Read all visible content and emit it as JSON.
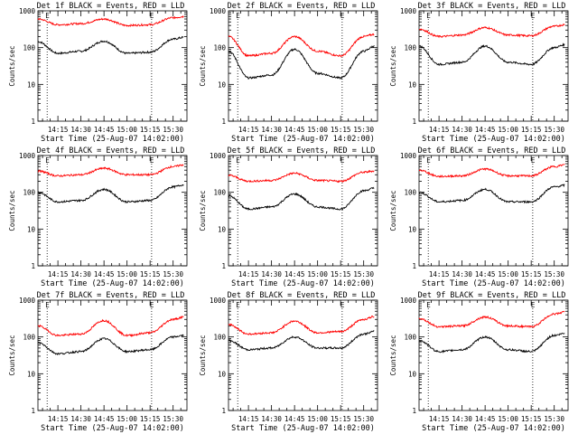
{
  "colors": {
    "events": "#000000",
    "lld": "#ff0000",
    "background": "#ffffff"
  },
  "chart_data": [
    {
      "type": "line",
      "title": "Det 1f BLACK = Events, RED = LLD",
      "xlabel": "Start Time (25-Aug-07 14:02:00)",
      "ylabel": "Counts/sec",
      "xlim": [
        "14:02",
        "15:39"
      ],
      "ylim": [
        1,
        1000
      ],
      "yscale": "log",
      "xticks": [
        "14:15",
        "14:30",
        "14:45",
        "15:00",
        "15:15",
        "15:30"
      ],
      "yticks": [
        "1",
        "10",
        "100",
        "1000"
      ],
      "markers": [
        {
          "label": "E",
          "x": "14:08"
        },
        {
          "label": "E",
          "x": "15:16"
        }
      ],
      "x": [
        "14:02",
        "14:15",
        "14:30",
        "14:45",
        "15:00",
        "15:15",
        "15:30",
        "15:37"
      ],
      "series": [
        {
          "name": "Events",
          "color": "#000000",
          "values": [
            145,
            70,
            80,
            150,
            70,
            75,
            170,
            190
          ]
        },
        {
          "name": "LLD",
          "color": "#ff0000",
          "values": [
            600,
            420,
            450,
            600,
            400,
            420,
            650,
            700
          ]
        }
      ]
    },
    {
      "type": "line",
      "title": "Det 2f BLACK = Events, RED = LLD",
      "xlabel": "Start Time (25-Aug-07 14:02:00)",
      "ylabel": "Counts/sec",
      "xlim": [
        "14:02",
        "15:39"
      ],
      "ylim": [
        1,
        1000
      ],
      "yscale": "log",
      "xticks": [
        "14:15",
        "14:30",
        "14:45",
        "15:00",
        "15:15",
        "15:30"
      ],
      "yticks": [
        "1",
        "10",
        "100",
        "1000"
      ],
      "markers": [
        {
          "label": "E",
          "x": "14:08"
        },
        {
          "label": "E",
          "x": "15:16"
        }
      ],
      "x": [
        "14:02",
        "14:15",
        "14:30",
        "14:45",
        "15:00",
        "15:15",
        "15:30",
        "15:37"
      ],
      "series": [
        {
          "name": "Events",
          "color": "#000000",
          "values": [
            80,
            15,
            18,
            90,
            20,
            15,
            80,
            110
          ]
        },
        {
          "name": "LLD",
          "color": "#ff0000",
          "values": [
            200,
            60,
            70,
            200,
            80,
            60,
            200,
            230
          ]
        }
      ]
    },
    {
      "type": "line",
      "title": "Det 3f BLACK = Events, RED = LLD",
      "xlabel": "Start Time (25-Aug-07 14:02:00)",
      "ylabel": "Counts/sec",
      "xlim": [
        "14:02",
        "15:39"
      ],
      "ylim": [
        1,
        1000
      ],
      "yscale": "log",
      "xticks": [
        "14:15",
        "14:30",
        "14:45",
        "15:00",
        "15:15",
        "15:30"
      ],
      "yticks": [
        "1",
        "10",
        "100",
        "1000"
      ],
      "markers": [
        {
          "label": "E",
          "x": "14:08"
        },
        {
          "label": "E",
          "x": "15:16"
        }
      ],
      "x": [
        "14:02",
        "14:15",
        "14:30",
        "14:45",
        "15:00",
        "15:15",
        "15:30",
        "15:37"
      ],
      "series": [
        {
          "name": "Events",
          "color": "#000000",
          "values": [
            110,
            35,
            40,
            110,
            40,
            35,
            100,
            120
          ]
        },
        {
          "name": "LLD",
          "color": "#ff0000",
          "values": [
            320,
            200,
            220,
            350,
            220,
            210,
            380,
            420
          ]
        }
      ]
    },
    {
      "type": "line",
      "title": "Det 4f BLACK = Events, RED = LLD",
      "xlabel": "Start Time (25-Aug-07 14:02:00)",
      "ylabel": "Counts/sec",
      "xlim": [
        "14:02",
        "15:39"
      ],
      "ylim": [
        1,
        1000
      ],
      "yscale": "log",
      "xticks": [
        "14:15",
        "14:30",
        "14:45",
        "15:00",
        "15:15",
        "15:30"
      ],
      "yticks": [
        "1",
        "10",
        "100",
        "1000"
      ],
      "markers": [
        {
          "label": "E",
          "x": "14:08"
        },
        {
          "label": "E",
          "x": "15:16"
        }
      ],
      "x": [
        "14:02",
        "14:15",
        "14:30",
        "14:45",
        "15:00",
        "15:15",
        "15:30",
        "15:37"
      ],
      "series": [
        {
          "name": "Events",
          "color": "#000000",
          "values": [
            100,
            55,
            60,
            120,
            55,
            60,
            140,
            160
          ]
        },
        {
          "name": "LLD",
          "color": "#ff0000",
          "values": [
            380,
            280,
            300,
            450,
            300,
            300,
            500,
            560
          ]
        }
      ]
    },
    {
      "type": "line",
      "title": "Det 5f BLACK = Events, RED = LLD",
      "xlabel": "Start Time (25-Aug-07 14:02:00)",
      "ylabel": "Counts/sec",
      "xlim": [
        "14:02",
        "15:39"
      ],
      "ylim": [
        1,
        1000
      ],
      "yscale": "log",
      "xticks": [
        "14:15",
        "14:30",
        "14:45",
        "15:00",
        "15:15",
        "15:30"
      ],
      "yticks": [
        "1",
        "10",
        "100",
        "1000"
      ],
      "markers": [
        {
          "label": "E",
          "x": "14:08"
        },
        {
          "label": "E",
          "x": "15:16"
        }
      ],
      "x": [
        "14:02",
        "14:15",
        "14:30",
        "14:45",
        "15:00",
        "15:15",
        "15:30",
        "15:37"
      ],
      "series": [
        {
          "name": "Events",
          "color": "#000000",
          "values": [
            80,
            35,
            40,
            90,
            40,
            35,
            110,
            130
          ]
        },
        {
          "name": "LLD",
          "color": "#ff0000",
          "values": [
            290,
            200,
            210,
            330,
            210,
            200,
            350,
            380
          ]
        }
      ]
    },
    {
      "type": "line",
      "title": "Det 6f BLACK = Events, RED = LLD",
      "xlabel": "Start Time (25-Aug-07 14:02:00)",
      "ylabel": "Counts/sec",
      "xlim": [
        "14:02",
        "15:39"
      ],
      "ylim": [
        1,
        1000
      ],
      "yscale": "log",
      "xticks": [
        "14:15",
        "14:30",
        "14:45",
        "15:00",
        "15:15",
        "15:30"
      ],
      "yticks": [
        "1",
        "10",
        "100",
        "1000"
      ],
      "markers": [
        {
          "label": "E",
          "x": "14:08"
        },
        {
          "label": "E",
          "x": "15:16"
        }
      ],
      "x": [
        "14:02",
        "14:15",
        "14:30",
        "14:45",
        "15:00",
        "15:15",
        "15:30",
        "15:37"
      ],
      "series": [
        {
          "name": "Events",
          "color": "#000000",
          "values": [
            100,
            55,
            60,
            120,
            55,
            55,
            140,
            155
          ]
        },
        {
          "name": "LLD",
          "color": "#ff0000",
          "values": [
            400,
            270,
            280,
            430,
            280,
            280,
            500,
            560
          ]
        }
      ]
    },
    {
      "type": "line",
      "title": "Det 7f BLACK = Events, RED = LLD",
      "xlabel": "Start Time (25-Aug-07 14:02:00)",
      "ylabel": "Counts/sec",
      "xlim": [
        "14:02",
        "15:39"
      ],
      "ylim": [
        1,
        1000
      ],
      "yscale": "log",
      "xticks": [
        "14:15",
        "14:30",
        "14:45",
        "15:00",
        "15:15",
        "15:30"
      ],
      "yticks": [
        "1",
        "10",
        "100",
        "1000"
      ],
      "markers": [
        {
          "label": "E",
          "x": "14:08"
        },
        {
          "label": "E",
          "x": "15:16"
        }
      ],
      "x": [
        "14:02",
        "14:15",
        "14:30",
        "14:45",
        "15:00",
        "15:15",
        "15:30",
        "15:37"
      ],
      "series": [
        {
          "name": "Events",
          "color": "#000000",
          "values": [
            70,
            35,
            40,
            90,
            40,
            45,
            100,
            110
          ]
        },
        {
          "name": "LLD",
          "color": "#ff0000",
          "values": [
            200,
            110,
            120,
            280,
            110,
            130,
            300,
            350
          ]
        }
      ]
    },
    {
      "type": "line",
      "title": "Det 8f BLACK = Events, RED = LLD",
      "xlabel": "Start Time (25-Aug-07 14:02:00)",
      "ylabel": "Counts/sec",
      "xlim": [
        "14:02",
        "15:39"
      ],
      "ylim": [
        1,
        1000
      ],
      "yscale": "log",
      "xticks": [
        "14:15",
        "14:30",
        "14:45",
        "15:00",
        "15:15",
        "15:30"
      ],
      "yticks": [
        "1",
        "10",
        "100",
        "1000"
      ],
      "markers": [
        {
          "label": "E",
          "x": "14:08"
        },
        {
          "label": "E",
          "x": "15:16"
        }
      ],
      "x": [
        "14:02",
        "14:15",
        "14:30",
        "14:45",
        "15:00",
        "15:15",
        "15:30",
        "15:37"
      ],
      "series": [
        {
          "name": "Events",
          "color": "#000000",
          "values": [
            80,
            45,
            50,
            100,
            50,
            50,
            120,
            140
          ]
        },
        {
          "name": "LLD",
          "color": "#ff0000",
          "values": [
            220,
            120,
            130,
            270,
            130,
            140,
            300,
            360
          ]
        }
      ]
    },
    {
      "type": "line",
      "title": "Det 9f BLACK = Events, RED = LLD",
      "xlabel": "Start Time (25-Aug-07 14:02:00)",
      "ylabel": "Counts/sec",
      "xlim": [
        "14:02",
        "15:39"
      ],
      "ylim": [
        1,
        1000
      ],
      "yscale": "log",
      "xticks": [
        "14:15",
        "14:30",
        "14:45",
        "15:00",
        "15:15",
        "15:30"
      ],
      "yticks": [
        "1",
        "10",
        "100",
        "1000"
      ],
      "markers": [
        {
          "label": "E",
          "x": "14:08"
        },
        {
          "label": "E",
          "x": "15:16"
        }
      ],
      "x": [
        "14:02",
        "14:15",
        "14:30",
        "14:45",
        "15:00",
        "15:15",
        "15:30",
        "15:37"
      ],
      "series": [
        {
          "name": "Events",
          "color": "#000000",
          "values": [
            80,
            40,
            45,
            100,
            45,
            40,
            110,
            125
          ]
        },
        {
          "name": "LLD",
          "color": "#ff0000",
          "values": [
            320,
            190,
            200,
            350,
            200,
            190,
            420,
            480
          ]
        }
      ]
    }
  ]
}
